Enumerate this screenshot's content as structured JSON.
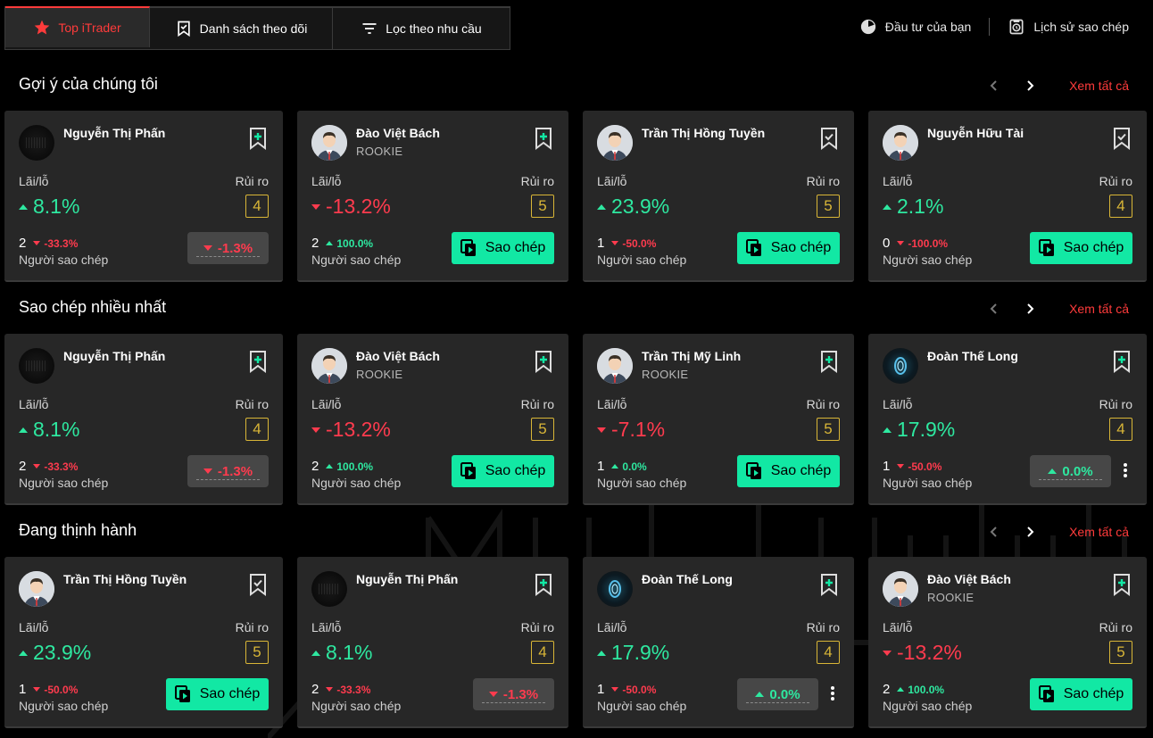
{
  "tabs": [
    {
      "label": "Top iTrader",
      "icon": "star-icon"
    },
    {
      "label": "Danh sách theo dõi",
      "icon": "bookmark-check-icon"
    },
    {
      "label": "Lọc theo nhu cầu",
      "icon": "filter-icon"
    }
  ],
  "header": {
    "invest_label": "Đầu tư của bạn",
    "history_label": "Lịch sử sao chép"
  },
  "common": {
    "see_all": "Xem tất cả",
    "pl_label": "Lãi/lỗ",
    "risk_label": "Rủi ro",
    "copiers_label": "Người sao chép",
    "copy_label": "Sao chép"
  },
  "colors": {
    "accent": "#ff3b3b",
    "up": "#2ee8a0",
    "down": "#ff3b4e",
    "copy_button": "#12e8a4",
    "risk": "#d9b637"
  },
  "sections": [
    {
      "title": "Gợi ý của chúng tôi",
      "cards": [
        {
          "name": "Nguyễn Thị Phấn",
          "rank": "",
          "avatar": "dark",
          "bookmark": "plus",
          "pl": "8.1%",
          "pl_dir": "up",
          "risk": "4",
          "copiers": "2",
          "copiers_change": "-33.3%",
          "copiers_dir": "down",
          "action": "pill",
          "pill_value": "-1.3%",
          "pill_dir": "down",
          "menu": false
        },
        {
          "name": "Đào Việt Bách",
          "rank": "ROOKIE",
          "avatar": "person",
          "bookmark": "plus",
          "pl": "-13.2%",
          "pl_dir": "down",
          "risk": "5",
          "copiers": "2",
          "copiers_change": "100.0%",
          "copiers_dir": "up",
          "action": "copy",
          "menu": false
        },
        {
          "name": "Trần Thị Hồng Tuyền",
          "rank": "",
          "avatar": "person",
          "bookmark": "check",
          "pl": "23.9%",
          "pl_dir": "up",
          "risk": "5",
          "copiers": "1",
          "copiers_change": "-50.0%",
          "copiers_dir": "down",
          "action": "copy",
          "menu": false
        },
        {
          "name": "Nguyễn Hữu Tài",
          "rank": "",
          "avatar": "person",
          "bookmark": "check",
          "pl": "2.1%",
          "pl_dir": "up",
          "risk": "4",
          "copiers": "0",
          "copiers_change": "-100.0%",
          "copiers_dir": "down",
          "action": "copy",
          "menu": false
        }
      ]
    },
    {
      "title": "Sao chép nhiều nhất",
      "cards": [
        {
          "name": "Nguyễn Thị Phấn",
          "rank": "",
          "avatar": "dark",
          "bookmark": "plus",
          "pl": "8.1%",
          "pl_dir": "up",
          "risk": "4",
          "copiers": "2",
          "copiers_change": "-33.3%",
          "copiers_dir": "down",
          "action": "pill",
          "pill_value": "-1.3%",
          "pill_dir": "down",
          "menu": false
        },
        {
          "name": "Đào Việt Bách",
          "rank": "ROOKIE",
          "avatar": "person",
          "bookmark": "plus",
          "pl": "-13.2%",
          "pl_dir": "down",
          "risk": "5",
          "copiers": "2",
          "copiers_change": "100.0%",
          "copiers_dir": "up",
          "action": "copy",
          "menu": false
        },
        {
          "name": "Trần Thị Mỹ Linh",
          "rank": "ROOKIE",
          "avatar": "person",
          "bookmark": "plus",
          "pl": "-7.1%",
          "pl_dir": "down",
          "risk": "5",
          "copiers": "1",
          "copiers_change": "0.0%",
          "copiers_dir": "up",
          "action": "copy",
          "menu": false
        },
        {
          "name": "Đoàn Thế Long",
          "rank": "",
          "avatar": "orb",
          "bookmark": "plus",
          "pl": "17.9%",
          "pl_dir": "up",
          "risk": "4",
          "copiers": "1",
          "copiers_change": "-50.0%",
          "copiers_dir": "down",
          "action": "pill",
          "pill_value": "0.0%",
          "pill_dir": "up",
          "menu": true
        }
      ]
    },
    {
      "title": "Đang thịnh hành",
      "cards": [
        {
          "name": "Trần Thị Hồng Tuyền",
          "rank": "",
          "avatar": "person",
          "bookmark": "check",
          "pl": "23.9%",
          "pl_dir": "up",
          "risk": "5",
          "copiers": "1",
          "copiers_change": "-50.0%",
          "copiers_dir": "down",
          "action": "copy",
          "menu": false
        },
        {
          "name": "Nguyễn Thị Phấn",
          "rank": "",
          "avatar": "dark",
          "bookmark": "plus",
          "pl": "8.1%",
          "pl_dir": "up",
          "risk": "4",
          "copiers": "2",
          "copiers_change": "-33.3%",
          "copiers_dir": "down",
          "action": "pill",
          "pill_value": "-1.3%",
          "pill_dir": "down",
          "menu": false
        },
        {
          "name": "Đoàn Thế Long",
          "rank": "",
          "avatar": "orb",
          "bookmark": "plus",
          "pl": "17.9%",
          "pl_dir": "up",
          "risk": "4",
          "copiers": "1",
          "copiers_change": "-50.0%",
          "copiers_dir": "down",
          "action": "pill",
          "pill_value": "0.0%",
          "pill_dir": "up",
          "menu": true
        },
        {
          "name": "Đào Việt Bách",
          "rank": "ROOKIE",
          "avatar": "person",
          "bookmark": "plus",
          "pl": "-13.2%",
          "pl_dir": "down",
          "risk": "5",
          "copiers": "2",
          "copiers_change": "100.0%",
          "copiers_dir": "up",
          "action": "copy",
          "menu": false
        }
      ]
    }
  ]
}
